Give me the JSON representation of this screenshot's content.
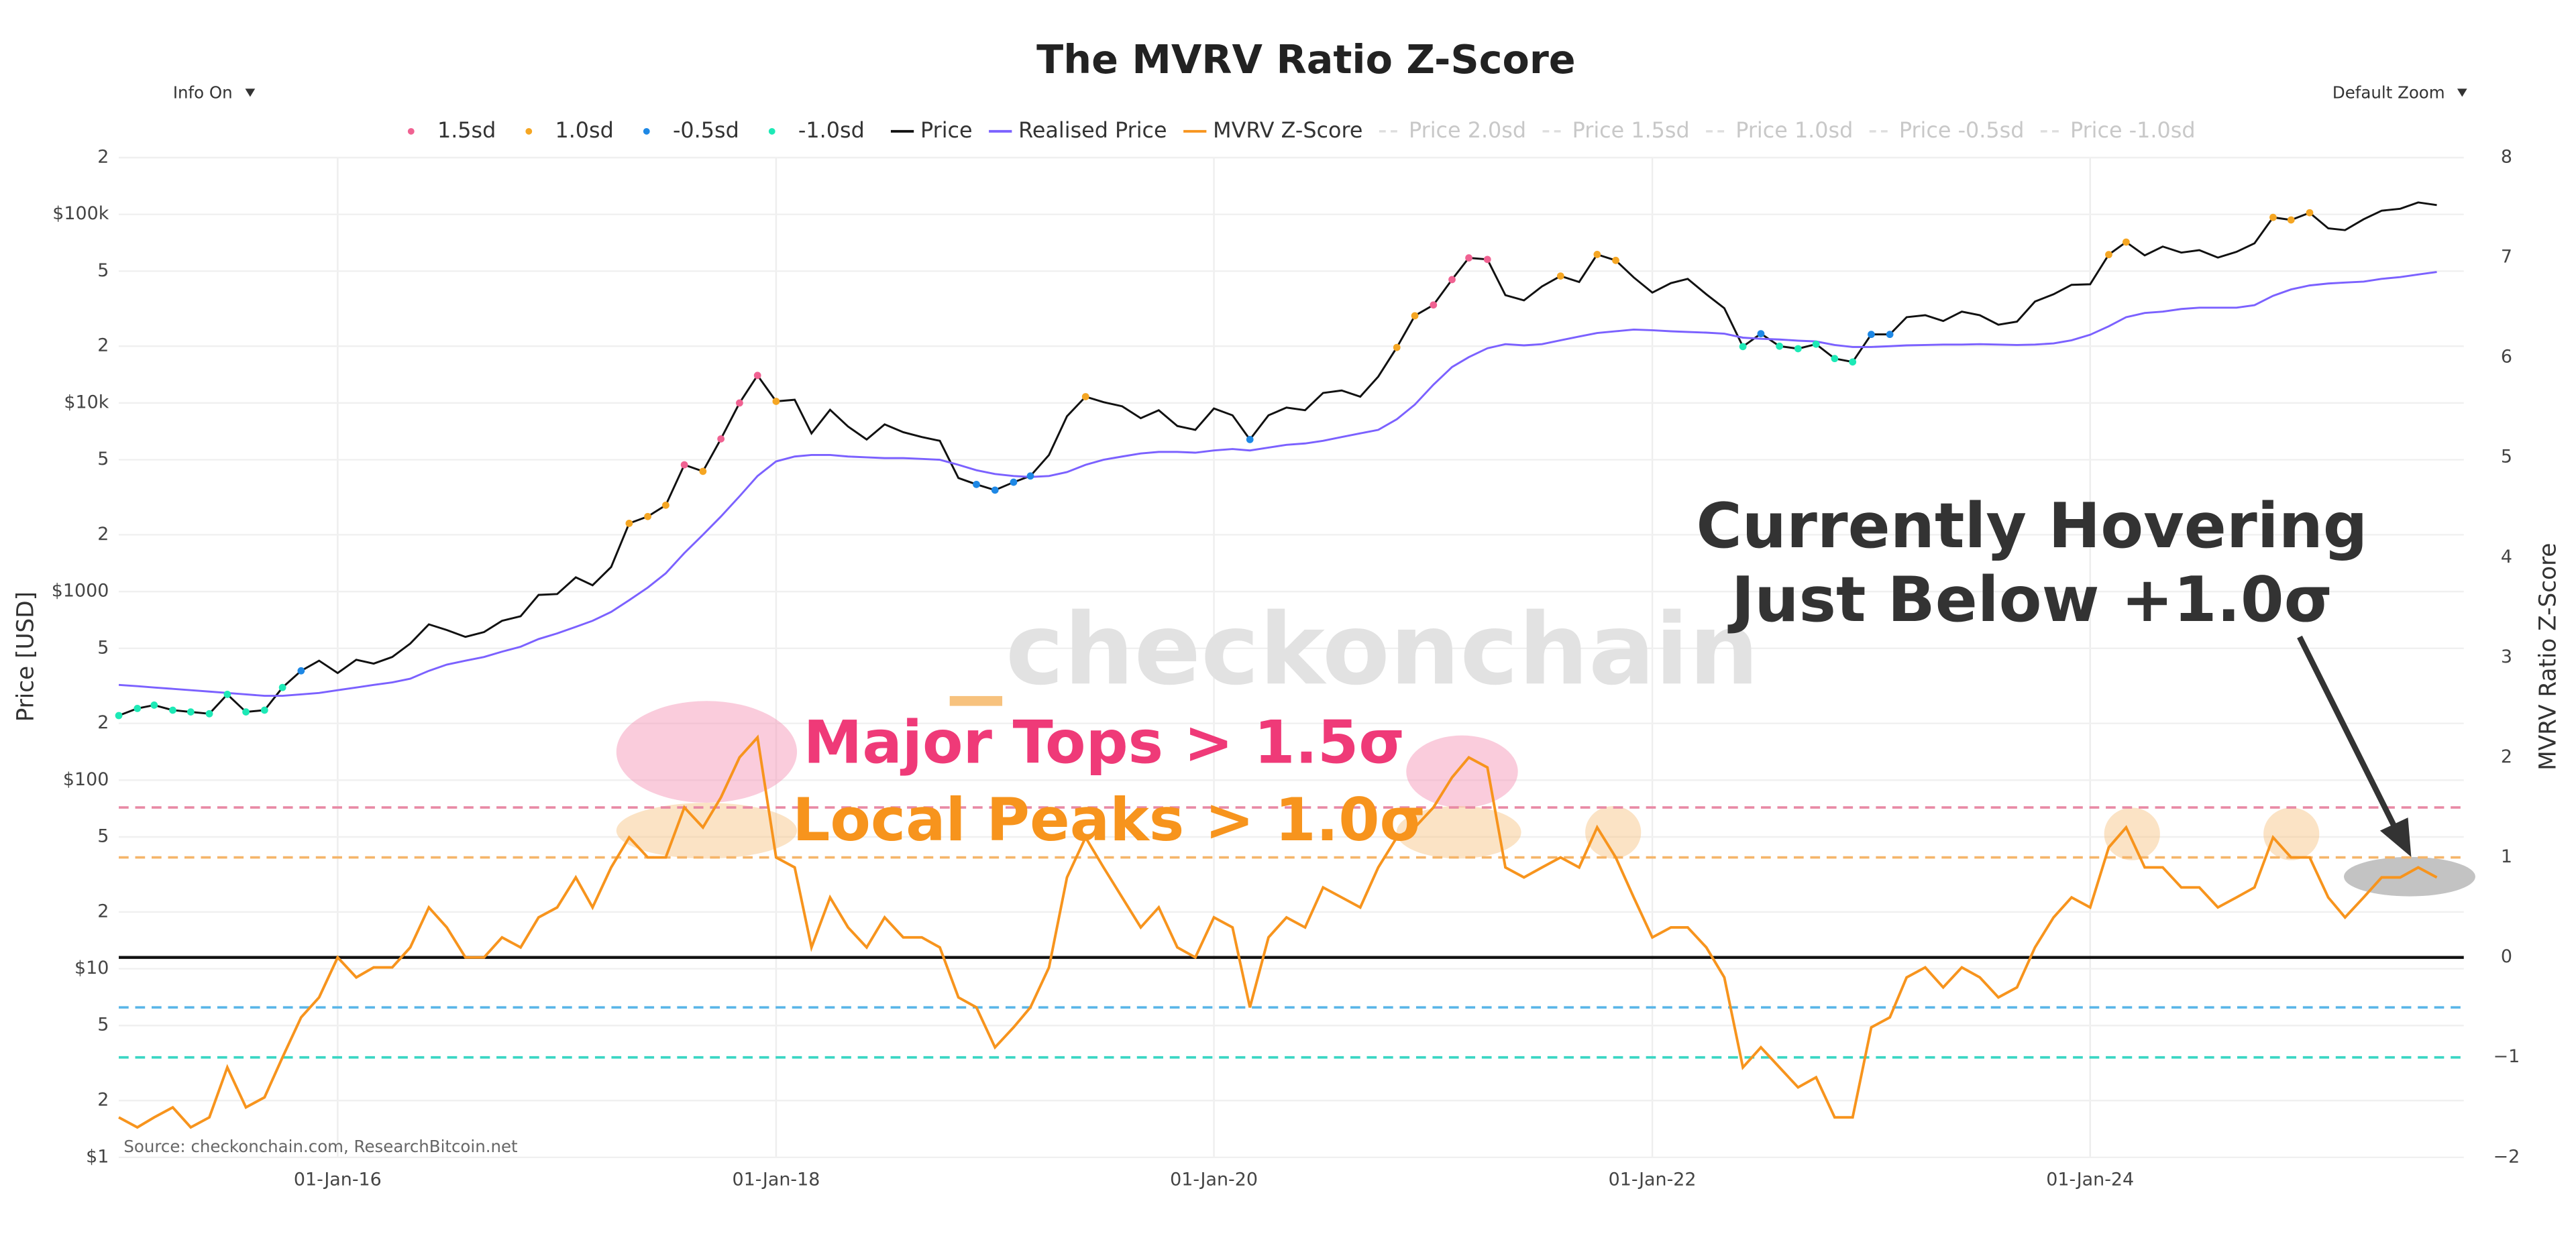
{
  "chart_data": {
    "type": "line",
    "title": "The MVRV Ratio Z-Score",
    "controls": [
      "Info On",
      "Default Zoom"
    ],
    "ylabel": "Price [USD]",
    "y2label": "MVRV Ratio Z-Score",
    "source": "Source: checkonchain.com, ResearchBitcoin.net",
    "watermark": "checkonchain",
    "annotations": [
      "Major Tops > 1.5σ",
      "Local Peaks > 1.0σ",
      "Currently Hovering",
      "Just Below +1.0σ"
    ],
    "log_y": true,
    "grid": true,
    "xlim": [
      "2015-01-01",
      "2025-09-15"
    ],
    "xticks": [
      {
        "value": "2016-01-01",
        "label": "01-Jan-16"
      },
      {
        "value": "2018-01-01",
        "label": "01-Jan-18"
      },
      {
        "value": "2020-01-01",
        "label": "01-Jan-20"
      },
      {
        "value": "2022-01-01",
        "label": "01-Jan-22"
      },
      {
        "value": "2024-01-01",
        "label": "01-Jan-24"
      }
    ],
    "ylim": [
      1,
      200000
    ],
    "yticks": [
      {
        "value": 1,
        "label": "$1"
      },
      2,
      5,
      {
        "value": 10,
        "label": "$10"
      },
      {
        "value": 20,
        "label": "2"
      },
      {
        "value": 50,
        "label": "5"
      },
      {
        "value": 100,
        "label": "$100"
      },
      {
        "value": 200,
        "label": "2"
      },
      {
        "value": 500,
        "label": "5"
      },
      {
        "value": 1000,
        "label": "$1000"
      },
      {
        "value": 2000,
        "label": "2"
      },
      {
        "value": 5000,
        "label": "5"
      },
      {
        "value": 10000,
        "label": "$10k"
      },
      {
        "value": 20000,
        "label": "2"
      },
      {
        "value": 50000,
        "label": "5"
      },
      {
        "value": 100000,
        "label": "$100k"
      },
      {
        "value": 200000,
        "label": "2"
      }
    ],
    "y2lim": [
      -2,
      8
    ],
    "y2ticks": [
      {
        "value": -2,
        "label": "−2"
      },
      {
        "value": -1,
        "label": "−1"
      },
      0,
      1,
      2,
      3,
      4,
      5,
      6,
      7,
      8
    ],
    "bands": [
      {
        "name": "1.5sd",
        "color": "#f06292",
        "value": 1.5
      },
      {
        "name": "1.0sd",
        "color": "#f5a623",
        "value": 1.0
      },
      {
        "name": "-0.5sd",
        "color": "#1e88e5",
        "value": -0.5
      },
      {
        "name": "-1.0sd",
        "color": "#1de9b6",
        "value": -1.0
      }
    ],
    "hlines": [
      {
        "value": 1.5,
        "color": "#e88aa5",
        "dashed": true
      },
      {
        "value": 1.0,
        "color": "#f5b56a",
        "dashed": true
      },
      {
        "value": 0,
        "color": "#111111",
        "dashed": false
      },
      {
        "value": -0.5,
        "color": "#5bb6e8",
        "dashed": true
      },
      {
        "value": -1.0,
        "color": "#3ad6c4",
        "dashed": true
      }
    ],
    "hidden_series": [
      "Price 2.0sd",
      "Price 1.5sd",
      "Price 1.0sd",
      "Price -0.5sd",
      "Price -1.0sd"
    ],
    "x": [
      "2015-01-01",
      "2015-02-01",
      "2015-03-01",
      "2015-04-01",
      "2015-05-01",
      "2015-06-01",
      "2015-07-01",
      "2015-08-01",
      "2015-09-01",
      "2015-10-01",
      "2015-11-01",
      "2015-12-01",
      "2016-01-01",
      "2016-02-01",
      "2016-03-01",
      "2016-04-01",
      "2016-05-01",
      "2016-06-01",
      "2016-07-01",
      "2016-08-01",
      "2016-09-01",
      "2016-10-01",
      "2016-11-01",
      "2016-12-01",
      "2017-01-01",
      "2017-02-01",
      "2017-03-01",
      "2017-04-01",
      "2017-05-01",
      "2017-06-01",
      "2017-07-01",
      "2017-08-01",
      "2017-09-01",
      "2017-10-01",
      "2017-11-01",
      "2017-12-01",
      "2018-01-01",
      "2018-02-01",
      "2018-03-01",
      "2018-04-01",
      "2018-05-01",
      "2018-06-01",
      "2018-07-01",
      "2018-08-01",
      "2018-09-01",
      "2018-10-01",
      "2018-11-01",
      "2018-12-01",
      "2019-01-01",
      "2019-02-01",
      "2019-03-01",
      "2019-04-01",
      "2019-05-01",
      "2019-06-01",
      "2019-07-01",
      "2019-08-01",
      "2019-09-01",
      "2019-10-01",
      "2019-11-01",
      "2019-12-01",
      "2020-01-01",
      "2020-02-01",
      "2020-03-01",
      "2020-04-01",
      "2020-05-01",
      "2020-06-01",
      "2020-07-01",
      "2020-08-01",
      "2020-09-01",
      "2020-10-01",
      "2020-11-01",
      "2020-12-01",
      "2021-01-01",
      "2021-02-01",
      "2021-03-01",
      "2021-04-01",
      "2021-05-01",
      "2021-06-01",
      "2021-07-01",
      "2021-08-01",
      "2021-09-01",
      "2021-10-01",
      "2021-11-01",
      "2021-12-01",
      "2022-01-01",
      "2022-02-01",
      "2022-03-01",
      "2022-04-01",
      "2022-05-01",
      "2022-06-01",
      "2022-07-01",
      "2022-08-01",
      "2022-09-01",
      "2022-10-01",
      "2022-11-01",
      "2022-12-01",
      "2023-01-01",
      "2023-02-01",
      "2023-03-01",
      "2023-04-01",
      "2023-05-01",
      "2023-06-01",
      "2023-07-01",
      "2023-08-01",
      "2023-09-01",
      "2023-10-01",
      "2023-11-01",
      "2023-12-01",
      "2024-01-01",
      "2024-02-01",
      "2024-03-01",
      "2024-04-01",
      "2024-05-01",
      "2024-06-01",
      "2024-07-01",
      "2024-08-01",
      "2024-09-01",
      "2024-10-01",
      "2024-11-01",
      "2024-12-01",
      "2025-01-01",
      "2025-02-01",
      "2025-03-01",
      "2025-04-01",
      "2025-05-01",
      "2025-06-01",
      "2025-07-01",
      "2025-08-01"
    ],
    "series": [
      {
        "name": "Price",
        "color": "#111111",
        "values": [
          220,
          240,
          250,
          235,
          230,
          225,
          285,
          230,
          235,
          310,
          380,
          430,
          370,
          435,
          415,
          450,
          530,
          670,
          625,
          575,
          610,
          700,
          740,
          960,
          970,
          1190,
          1080,
          1350,
          2300,
          2500,
          2870,
          4700,
          4340,
          6450,
          10000,
          14000,
          10200,
          10400,
          6900,
          9200,
          7500,
          6400,
          7700,
          7000,
          6600,
          6300,
          4000,
          3700,
          3450,
          3800,
          4100,
          5300,
          8500,
          10800,
          10100,
          9600,
          8300,
          9150,
          7550,
          7200,
          9350,
          8600,
          6400,
          8600,
          9450,
          9150,
          11300,
          11650,
          10800,
          13800,
          19700,
          29000,
          33100,
          45100,
          58800,
          57700,
          37300,
          35000,
          41500,
          47100,
          43800,
          61300,
          57000,
          46300,
          38500,
          43200,
          45500,
          37700,
          31800,
          19900,
          23300,
          20000,
          19400,
          20500,
          17200,
          16500,
          23100,
          23100,
          28500,
          29200,
          27200,
          30500,
          29200,
          26000,
          27000,
          34500,
          37700,
          42300,
          42600,
          61200,
          71300,
          60600,
          67500,
          62700,
          64600,
          59000,
          63300,
          70200,
          96400,
          93400,
          102000,
          84300,
          82500,
          94200,
          104600,
          107100,
          115700,
          112000
        ]
      },
      {
        "name": "Realised Price",
        "color": "#7b61ff",
        "values": [
          320,
          315,
          310,
          305,
          300,
          295,
          290,
          285,
          280,
          280,
          285,
          290,
          300,
          310,
          320,
          330,
          345,
          380,
          410,
          430,
          450,
          480,
          510,
          560,
          600,
          650,
          700,
          780,
          900,
          1050,
          1250,
          1600,
          2000,
          2500,
          3200,
          4100,
          4900,
          5200,
          5300,
          5300,
          5200,
          5150,
          5100,
          5100,
          5050,
          5000,
          4700,
          4400,
          4200,
          4100,
          4050,
          4100,
          4300,
          4700,
          5000,
          5200,
          5400,
          5500,
          5500,
          5450,
          5600,
          5700,
          5600,
          5800,
          6000,
          6100,
          6300,
          6600,
          6900,
          7200,
          8200,
          9800,
          12500,
          15500,
          17500,
          19500,
          20500,
          20200,
          20500,
          21500,
          22500,
          23500,
          24000,
          24500,
          24300,
          24000,
          23800,
          23600,
          23300,
          22200,
          21900,
          21700,
          21400,
          21200,
          20300,
          19800,
          19800,
          20000,
          20200,
          20300,
          20400,
          20400,
          20500,
          20400,
          20300,
          20400,
          20700,
          21500,
          23000,
          25500,
          28500,
          30000,
          30500,
          31500,
          32000,
          32000,
          32000,
          33000,
          37000,
          40000,
          42000,
          43000,
          43500,
          44000,
          45500,
          46500,
          48000,
          49500
        ]
      },
      {
        "name": "MVRV Z-Score",
        "color": "#f7941d",
        "axis": "y2",
        "values": [
          -1.6,
          -1.7,
          -1.6,
          -1.5,
          -1.7,
          -1.6,
          -1.1,
          -1.5,
          -1.4,
          -1.0,
          -0.6,
          -0.4,
          0.0,
          -0.2,
          -0.1,
          -0.1,
          0.1,
          0.5,
          0.3,
          0.0,
          0.0,
          0.2,
          0.1,
          0.4,
          0.5,
          0.8,
          0.5,
          0.9,
          1.2,
          1.0,
          1.0,
          1.5,
          1.3,
          1.6,
          2.0,
          2.2,
          1.0,
          0.9,
          0.1,
          0.6,
          0.3,
          0.1,
          0.4,
          0.2,
          0.2,
          0.1,
          -0.4,
          -0.5,
          -0.9,
          -0.7,
          -0.5,
          -0.1,
          0.8,
          1.2,
          0.9,
          0.6,
          0.3,
          0.5,
          0.1,
          0.0,
          0.4,
          0.3,
          -0.5,
          0.2,
          0.4,
          0.3,
          0.7,
          0.6,
          0.5,
          0.9,
          1.2,
          1.3,
          1.5,
          1.8,
          2.0,
          1.9,
          0.9,
          0.8,
          0.9,
          1.0,
          0.9,
          1.3,
          1.0,
          0.6,
          0.2,
          0.3,
          0.3,
          0.1,
          -0.2,
          -1.1,
          -0.9,
          -1.1,
          -1.3,
          -1.2,
          -1.6,
          -1.6,
          -0.7,
          -0.6,
          -0.2,
          -0.1,
          -0.3,
          -0.1,
          -0.2,
          -0.4,
          -0.3,
          0.1,
          0.4,
          0.6,
          0.5,
          1.1,
          1.3,
          0.9,
          0.9,
          0.7,
          0.7,
          0.5,
          0.6,
          0.7,
          1.2,
          1.0,
          1.0,
          0.6,
          0.4,
          0.6,
          0.8,
          0.8,
          0.9,
          0.8
        ]
      }
    ]
  }
}
